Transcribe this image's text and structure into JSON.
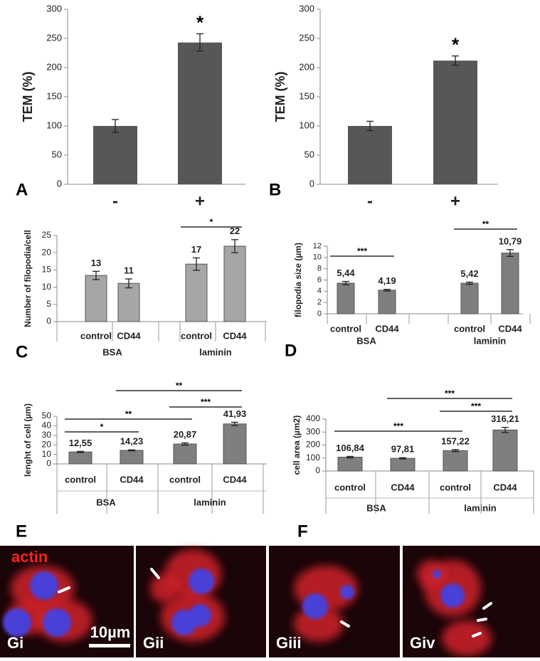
{
  "chart_data": [
    {
      "type": "bar",
      "panel": "A",
      "y_label": "TEM (%)",
      "categories": [
        "-",
        "+"
      ],
      "values": [
        100,
        243
      ],
      "errors": [
        11,
        15
      ],
      "color": "#575757",
      "ylim": [
        0,
        300
      ],
      "yticks": [
        0,
        50,
        100,
        150,
        200,
        250,
        300
      ],
      "annotations": [
        {
          "text": "*",
          "category": 1
        }
      ]
    },
    {
      "type": "bar",
      "panel": "B",
      "y_label": "TEM (%)",
      "categories": [
        "-",
        "+"
      ],
      "values": [
        100,
        212
      ],
      "errors": [
        8,
        8
      ],
      "color": "#575757",
      "ylim": [
        0,
        300
      ],
      "yticks": [
        0,
        50,
        100,
        150,
        200,
        250,
        300
      ],
      "annotations": [
        {
          "text": "*",
          "category": 1
        }
      ]
    },
    {
      "type": "bar",
      "panel": "C",
      "y_label": "Number of filopodia/cell",
      "groups": [
        {
          "label": "BSA",
          "categories": [
            "control",
            "CD44"
          ]
        },
        {
          "label": "laminin",
          "categories": [
            "control",
            "CD44"
          ]
        }
      ],
      "values": [
        13.4,
        11.1,
        16.7,
        21.9
      ],
      "value_labels": [
        "13",
        "11",
        "17",
        "22"
      ],
      "errors": [
        1.2,
        1.3,
        1.8,
        1.9
      ],
      "color": "#a6a6a6",
      "ylim": [
        0,
        25
      ],
      "yticks": [
        0,
        5,
        10,
        15,
        20,
        25
      ],
      "comparisons": [
        {
          "label": "*",
          "pair": [
            2,
            3
          ]
        }
      ]
    },
    {
      "type": "bar",
      "panel": "D",
      "y_label": "filopodia size (µm)",
      "groups": [
        {
          "label": "BSA",
          "categories": [
            "control",
            "CD44"
          ]
        },
        {
          "label": "laminin",
          "categories": [
            "control",
            "CD44"
          ]
        }
      ],
      "values": [
        5.44,
        4.19,
        5.42,
        10.79
      ],
      "value_labels": [
        "5,44",
        "4,19",
        "5,42",
        "10,79"
      ],
      "errors": [
        0.3,
        0.15,
        0.2,
        0.6
      ],
      "color": "#7f7f7f",
      "ylim": [
        0,
        12
      ],
      "yticks": [
        0,
        2,
        4,
        6,
        8,
        10,
        12
      ],
      "comparisons": [
        {
          "label": "***",
          "pair": [
            0,
            1
          ]
        },
        {
          "label": "**",
          "pair": [
            2,
            3
          ]
        }
      ]
    },
    {
      "type": "bar",
      "panel": "E",
      "y_label": "lenght of cell (µm)",
      "groups": [
        {
          "label": "BSA",
          "categories": [
            "control",
            "CD44"
          ]
        },
        {
          "label": "laminin",
          "categories": [
            "control",
            "CD44"
          ]
        }
      ],
      "values": [
        12.55,
        14.23,
        20.87,
        41.93
      ],
      "value_labels": [
        "12,55",
        "14,23",
        "20,87",
        "41,93"
      ],
      "errors": [
        0.6,
        0.5,
        1.2,
        1.8
      ],
      "color": "#7f7f7f",
      "ylim": [
        0,
        50
      ],
      "yticks": [
        0,
        10,
        20,
        30,
        40,
        50
      ],
      "comparisons": [
        {
          "label": "*",
          "pair": [
            0,
            1
          ]
        },
        {
          "label": "**",
          "pair": [
            0,
            2
          ]
        },
        {
          "label": "***",
          "pair": [
            2,
            3
          ]
        },
        {
          "label": "**",
          "pair": [
            1,
            3
          ]
        }
      ]
    },
    {
      "type": "bar",
      "panel": "F",
      "y_label": "cell area (µm2)",
      "groups": [
        {
          "label": "BSA",
          "categories": [
            "control",
            "CD44"
          ]
        },
        {
          "label": "laminin",
          "categories": [
            "control",
            "CD44"
          ]
        }
      ],
      "values": [
        106.84,
        97.81,
        157.22,
        316.21
      ],
      "value_labels": [
        "106,84",
        "97,81",
        "157,22",
        "316,21"
      ],
      "errors": [
        6,
        5,
        8,
        20
      ],
      "color": "#7f7f7f",
      "ylim": [
        0,
        400
      ],
      "yticks": [
        0,
        100,
        200,
        300,
        400
      ],
      "comparisons": [
        {
          "label": "***",
          "pair": [
            0,
            2
          ]
        },
        {
          "label": "***",
          "pair": [
            2,
            3
          ]
        },
        {
          "label": "***",
          "pair": [
            1,
            3
          ]
        }
      ]
    }
  ],
  "micrographs": {
    "stain": "actin",
    "scale_bar": "10µm",
    "panels": [
      "Gi",
      "Gii",
      "Giii",
      "Giv"
    ]
  }
}
